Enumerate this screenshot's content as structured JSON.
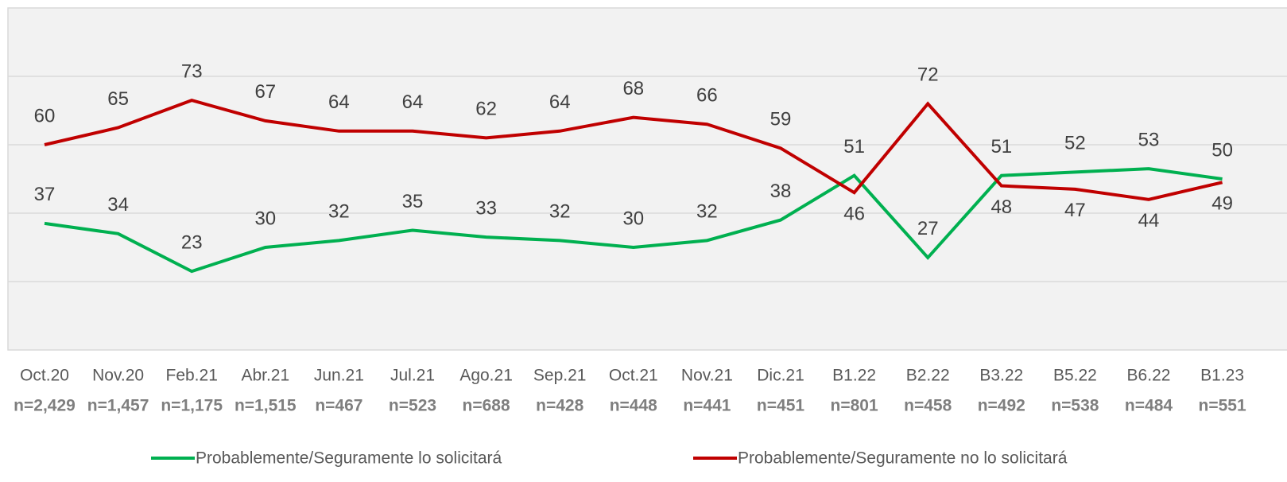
{
  "chart_data": {
    "type": "line",
    "categories": [
      "Oct.20",
      "Nov.20",
      "Feb.21",
      "Abr.21",
      "Jun.21",
      "Jul.21",
      "Ago.21",
      "Sep.21",
      "Oct.21",
      "Nov.21",
      "Dic.21",
      "B1.22",
      "B2.22",
      "B3.22",
      "B5.22",
      "B6.22",
      "B1.23"
    ],
    "sample_sizes": [
      "n=2,429",
      "n=1,457",
      "n=1,175",
      "n=1,515",
      "n=467",
      "n=523",
      "n=688",
      "n=428",
      "n=448",
      "n=441",
      "n=451",
      "n=801",
      "n=458",
      "n=492",
      "n=538",
      "n=484",
      "n=551"
    ],
    "series": [
      {
        "name": "Probablemente/Seguramente lo solicitará",
        "color": "#00b050",
        "values": [
          37,
          34,
          23,
          30,
          32,
          35,
          33,
          32,
          30,
          32,
          38,
          51,
          27,
          51,
          52,
          53,
          50
        ]
      },
      {
        "name": "Probablemente/Seguramente no lo solicitará",
        "color": "#c00000",
        "values": [
          60,
          65,
          73,
          67,
          64,
          64,
          62,
          64,
          68,
          66,
          59,
          46,
          72,
          48,
          47,
          44,
          49
        ]
      }
    ],
    "ylim": [
      0,
      100
    ],
    "yticks": [
      0,
      20,
      40,
      60,
      80,
      100
    ],
    "show_tick_labels": false,
    "grid": true,
    "legend": "bottom"
  }
}
